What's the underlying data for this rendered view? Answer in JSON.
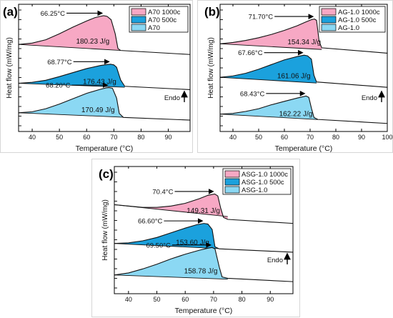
{
  "colors": {
    "pink": "#f7a8c4",
    "dark_blue": "#1ba1dd",
    "light_blue": "#8bd8f3",
    "line": "#111111"
  },
  "chart_data": [
    {
      "type": "line",
      "panel_label": "(a)",
      "xlabel": "Temperature (°C)",
      "ylabel": "Heat flow (mW/mg)",
      "xlim": [
        35,
        98
      ],
      "x_ticks": [
        40,
        50,
        60,
        70,
        80,
        90
      ],
      "tick_labels": [
        "40",
        "50",
        "60",
        "70",
        "80",
        "90"
      ],
      "endo_label": "Endo",
      "legend_position": "top-right",
      "legend": [
        {
          "name": "A70 1000c",
          "color": "pink"
        },
        {
          "name": "A70 500c",
          "color": "dark_blue"
        },
        {
          "name": "A70",
          "color": "light_blue"
        }
      ],
      "series": [
        {
          "name": "A70 1000c",
          "color": "pink",
          "peak_temperature": "66.25°C",
          "enthalpy": "180.23 J/g",
          "points": [
            [
              35,
              4.0
            ],
            [
              40,
              4.2
            ],
            [
              45,
              4.7
            ],
            [
              50,
              5.6
            ],
            [
              55,
              6.6
            ],
            [
              60,
              7.5
            ],
            [
              63,
              8.0
            ],
            [
              65,
              8.2
            ],
            [
              66.25,
              8.3
            ],
            [
              67.5,
              8.2
            ],
            [
              69,
              7.7
            ],
            [
              70.5,
              5.6
            ],
            [
              71.5,
              3.4
            ],
            [
              72.5,
              3.1
            ],
            [
              98,
              2.5
            ]
          ]
        },
        {
          "name": "A70 500c",
          "color": "dark_blue",
          "peak_temperature": "68.77°C",
          "enthalpy": "176.43 J/g",
          "points": [
            [
              35,
              -1.8
            ],
            [
              40,
              -1.65
            ],
            [
              45,
              -1.35
            ],
            [
              50,
              -0.8
            ],
            [
              55,
              -0.2
            ],
            [
              60,
              0.4
            ],
            [
              65,
              0.85
            ],
            [
              67.5,
              1.0
            ],
            [
              68.77,
              1.05
            ],
            [
              70,
              0.95
            ],
            [
              71,
              0.6
            ],
            [
              72.5,
              -1.3
            ],
            [
              74,
              -2.25
            ],
            [
              98,
              -2.75
            ]
          ]
        },
        {
          "name": "A70",
          "color": "light_blue",
          "peak_temperature": "68.20°C",
          "enthalpy": "170.49 J/g",
          "points": [
            [
              35,
              -6.2
            ],
            [
              40,
              -6.05
            ],
            [
              45,
              -5.6
            ],
            [
              50,
              -4.9
            ],
            [
              55,
              -4.1
            ],
            [
              60,
              -3.3
            ],
            [
              65,
              -2.7
            ],
            [
              67,
              -2.5
            ],
            [
              68.2,
              -2.45
            ],
            [
              69.5,
              -2.55
            ],
            [
              71,
              -4.0
            ],
            [
              72,
              -6.3
            ],
            [
              73.5,
              -6.9
            ],
            [
              98,
              -7.3
            ]
          ]
        }
      ]
    },
    {
      "type": "line",
      "panel_label": "(b)",
      "xlabel": "Temperature (°C)",
      "ylabel": "Heat flow (mW/mg)",
      "xlim": [
        35,
        100
      ],
      "x_ticks": [
        40,
        50,
        60,
        70,
        80,
        90,
        100
      ],
      "tick_labels": [
        "40",
        "50",
        "60",
        "70",
        "80",
        "90",
        "100"
      ],
      "endo_label": "Endo",
      "legend_position": "top-right",
      "legend": [
        {
          "name": "AG-1.0 1000c",
          "color": "pink"
        },
        {
          "name": "AG-1.0 500c",
          "color": "dark_blue"
        },
        {
          "name": "AG-1.0",
          "color": "light_blue"
        }
      ],
      "series": [
        {
          "name": "AG-1.0 1000c",
          "color": "pink",
          "peak_temperature": "71.70°C",
          "enthalpy": "154.34 J/g",
          "points": [
            [
              35,
              4.1
            ],
            [
              40,
              4.3
            ],
            [
              45,
              4.6
            ],
            [
              50,
              5.0
            ],
            [
              55,
              5.5
            ],
            [
              60,
              6.1
            ],
            [
              65,
              6.8
            ],
            [
              68,
              7.3
            ],
            [
              70.5,
              7.7
            ],
            [
              71.7,
              7.8
            ],
            [
              72.5,
              7.6
            ],
            [
              73.5,
              4.5
            ],
            [
              74.5,
              3.5
            ],
            [
              100,
              2.7
            ]
          ]
        },
        {
          "name": "AG-1.0 500c",
          "color": "dark_blue",
          "peak_temperature": "67.66°C",
          "enthalpy": "161.06 J/g",
          "points": [
            [
              35,
              -0.9
            ],
            [
              40,
              -0.7
            ],
            [
              45,
              -0.3
            ],
            [
              50,
              0.3
            ],
            [
              55,
              1.0
            ],
            [
              60,
              1.7
            ],
            [
              65,
              2.2
            ],
            [
              67.66,
              2.4
            ],
            [
              69,
              2.3
            ],
            [
              70.5,
              1.8
            ],
            [
              71.5,
              -0.6
            ],
            [
              72.5,
              -1.6
            ],
            [
              100,
              -2.4
            ]
          ]
        },
        {
          "name": "AG-1.0",
          "color": "light_blue",
          "peak_temperature": "68.43°C",
          "enthalpy": "162.22 J/g",
          "points": [
            [
              35,
              -6.4
            ],
            [
              40,
              -6.3
            ],
            [
              45,
              -6.0
            ],
            [
              50,
              -5.6
            ],
            [
              55,
              -5.0
            ],
            [
              60,
              -4.5
            ],
            [
              65,
              -4.0
            ],
            [
              68.43,
              -3.7
            ],
            [
              69.5,
              -3.9
            ],
            [
              70.5,
              -5.5
            ],
            [
              71.5,
              -6.9
            ],
            [
              73,
              -7.2
            ],
            [
              100,
              -7.8
            ]
          ]
        }
      ]
    },
    {
      "type": "line",
      "panel_label": "(c)",
      "xlabel": "Temperature (°C)",
      "ylabel": "Heat flow (mW/mg)",
      "xlim": [
        35,
        98
      ],
      "x_ticks": [
        40,
        50,
        60,
        70,
        80,
        90
      ],
      "tick_labels": [
        "40",
        "50",
        "60",
        "70",
        "80",
        "90"
      ],
      "endo_label": "Endo",
      "legend_position": "top-right",
      "legend": [
        {
          "name": "ASG-1.0 1000c",
          "color": "pink"
        },
        {
          "name": "ASG-1.0 500c",
          "color": "dark_blue"
        },
        {
          "name": "ASG-1.0",
          "color": "light_blue"
        }
      ],
      "series": [
        {
          "name": "ASG-1.0 1000c",
          "color": "pink",
          "peak_temperature": "70.4°C",
          "enthalpy": "149.31 J/g",
          "points": [
            [
              35,
              4.3
            ],
            [
              40,
              4.1
            ],
            [
              45,
              3.9
            ],
            [
              50,
              3.9
            ],
            [
              55,
              4.1
            ],
            [
              60,
              4.5
            ],
            [
              65,
              5.2
            ],
            [
              68,
              5.7
            ],
            [
              70.4,
              5.9
            ],
            [
              71.5,
              5.6
            ],
            [
              72.5,
              3.8
            ],
            [
              73.5,
              2.4
            ],
            [
              75,
              2.1
            ],
            [
              98,
              1.5
            ]
          ]
        },
        {
          "name": "ASG-1.0 500c",
          "color": "dark_blue",
          "peak_temperature": "66.60°C",
          "enthalpy": "153.60 J/g",
          "points": [
            [
              35,
              -1.5
            ],
            [
              40,
              -1.4
            ],
            [
              45,
              -1.1
            ],
            [
              50,
              -0.6
            ],
            [
              55,
              0.1
            ],
            [
              60,
              0.8
            ],
            [
              64,
              1.3
            ],
            [
              66.6,
              1.5
            ],
            [
              68,
              1.4
            ],
            [
              69.5,
              0.6
            ],
            [
              70.5,
              -2.0
            ],
            [
              72,
              -2.3
            ],
            [
              98,
              -2.8
            ]
          ]
        },
        {
          "name": "ASG-1.0",
          "color": "light_blue",
          "peak_temperature": "69.50°C",
          "enthalpy": "158.78 J/g",
          "points": [
            [
              35,
              -6.2
            ],
            [
              40,
              -5.9
            ],
            [
              45,
              -5.3
            ],
            [
              50,
              -4.6
            ],
            [
              55,
              -3.8
            ],
            [
              60,
              -3.1
            ],
            [
              65,
              -2.5
            ],
            [
              68,
              -2.2
            ],
            [
              69.5,
              -2.1
            ],
            [
              70.5,
              -2.3
            ],
            [
              72,
              -5.0
            ],
            [
              73,
              -6.5
            ],
            [
              75,
              -6.7
            ],
            [
              98,
              -7.2
            ]
          ]
        }
      ]
    }
  ]
}
